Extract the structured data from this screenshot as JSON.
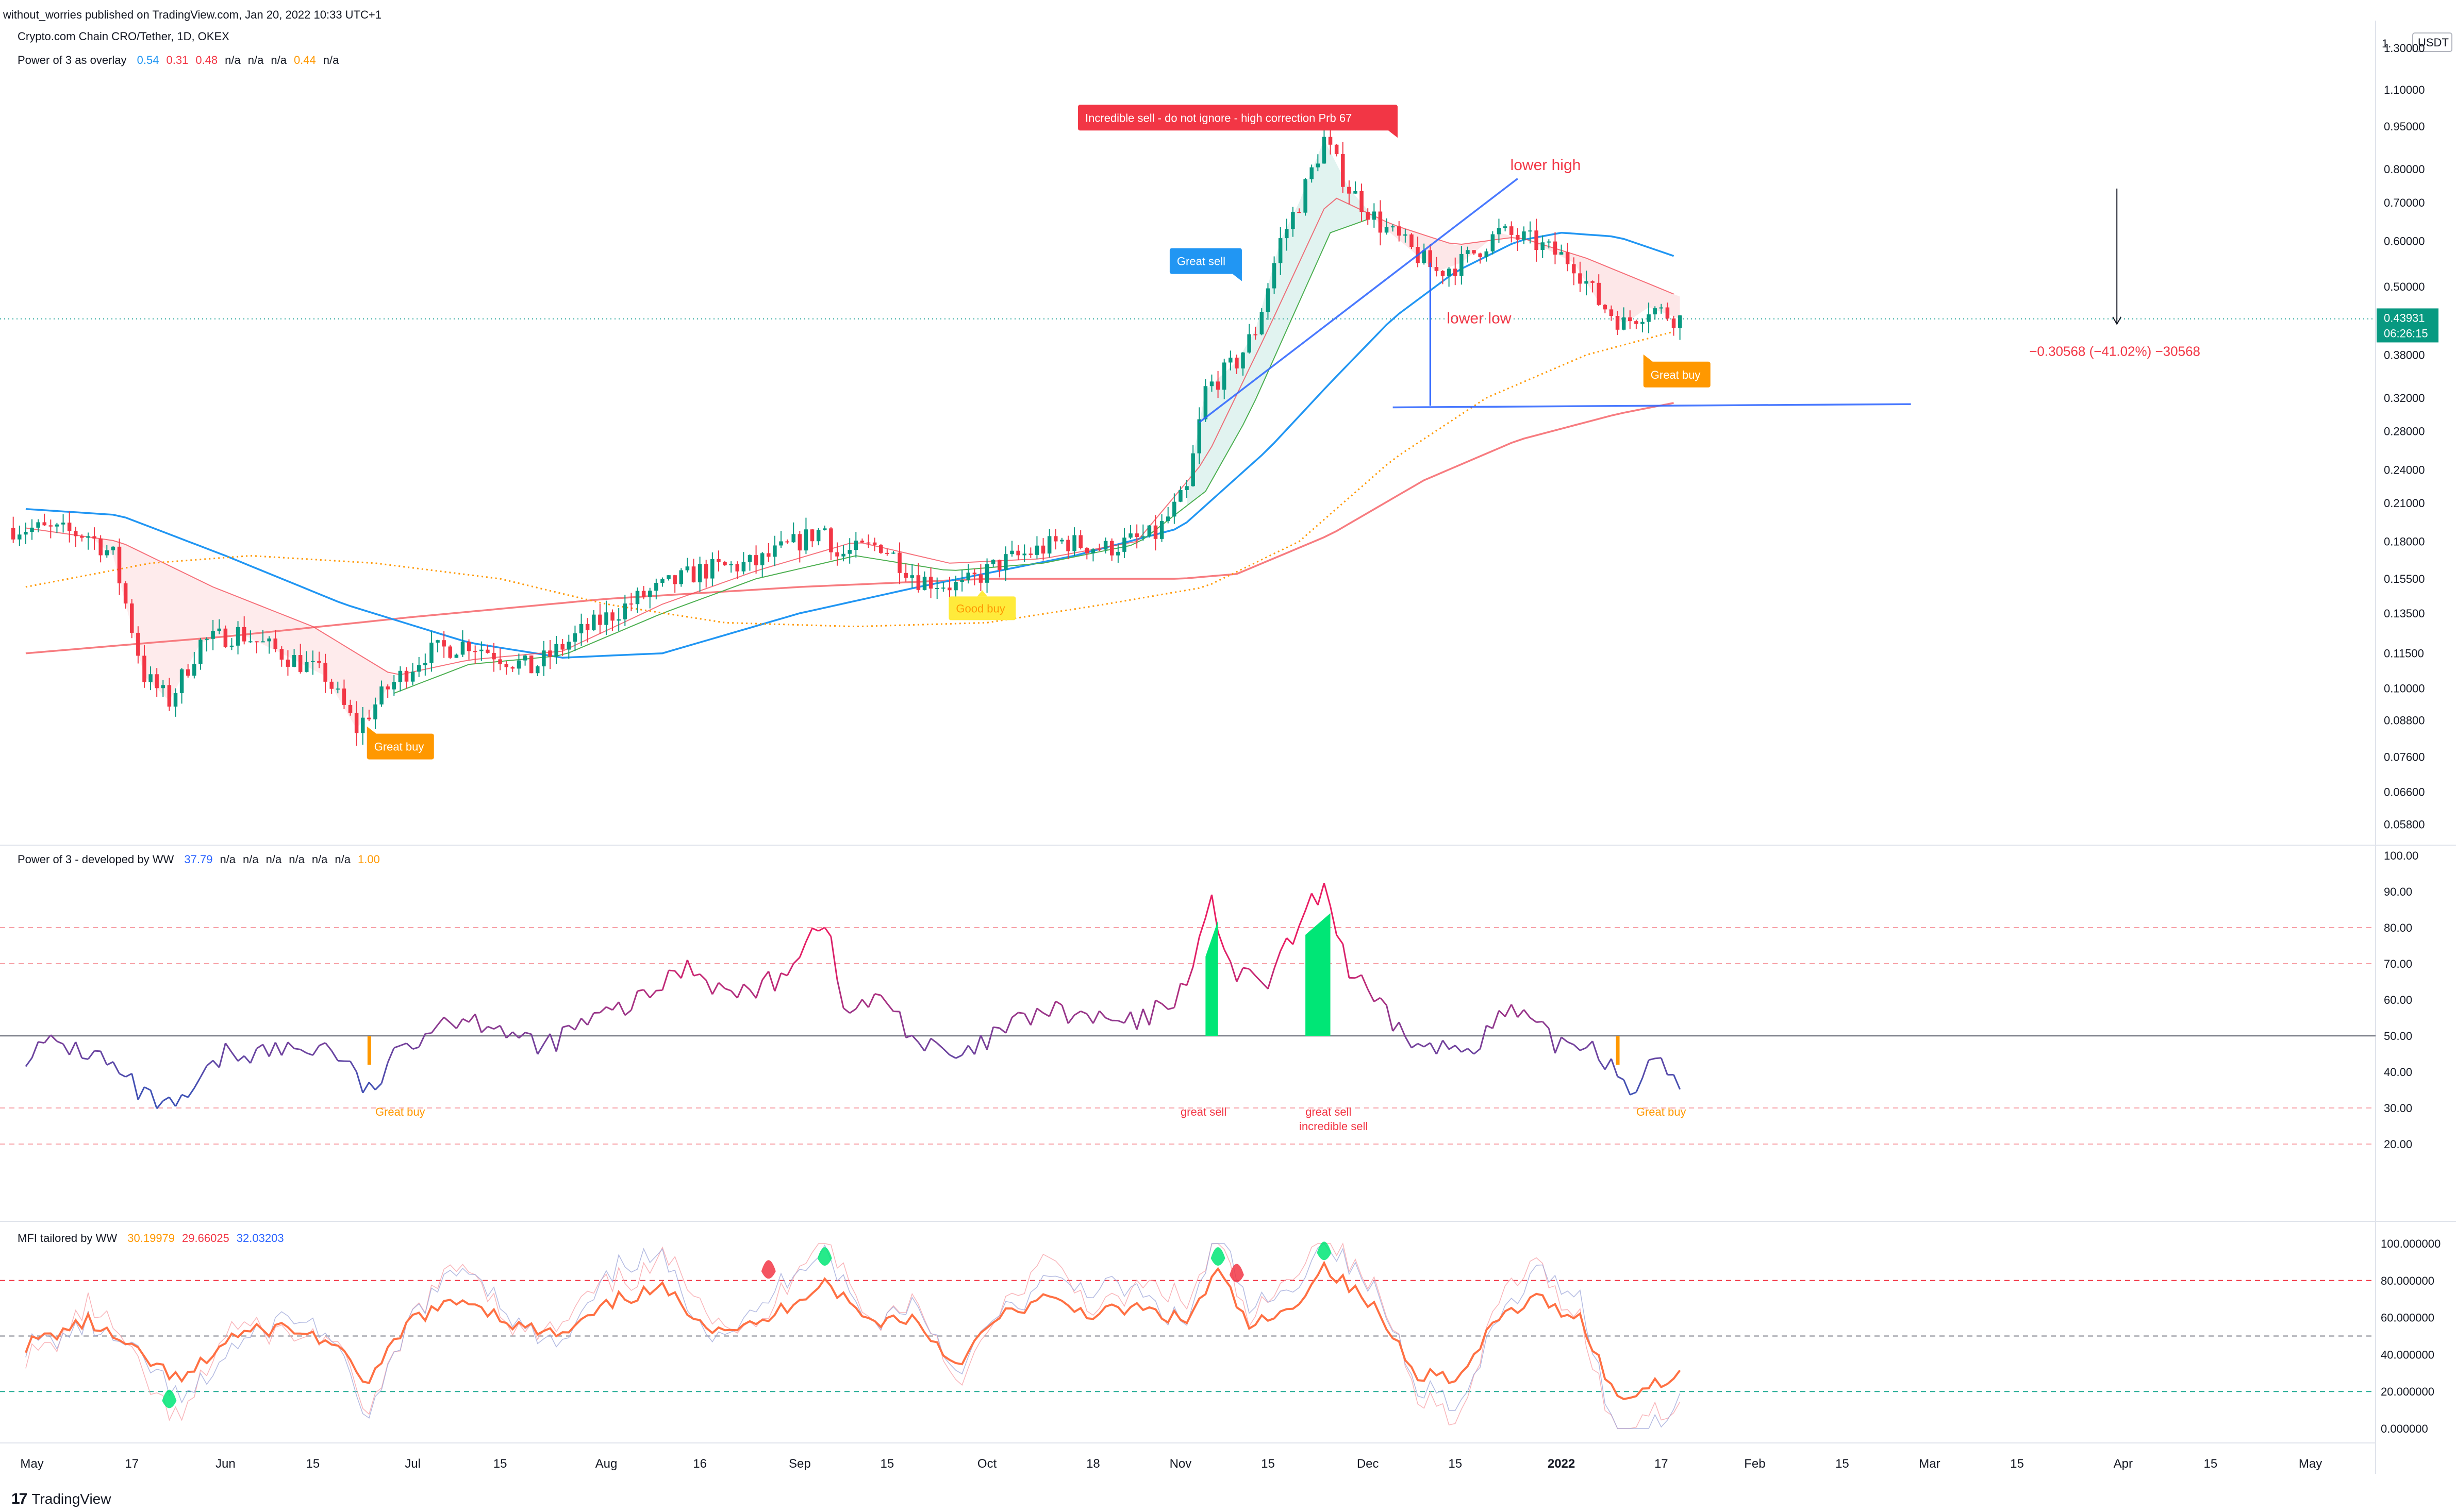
{
  "header": {
    "publisher": "without_worries published on TradingView.com, Jan 20, 2022 10:33 UTC+1",
    "symbol": "Crypto.com Chain CRO/Tether, 1D, OKEX",
    "overlay_name": "Power of 3 as overlay",
    "overlay_values": [
      "0.54",
      "0.31",
      "0.48",
      "n/a",
      "n/a",
      "n/a",
      "0.44",
      "n/a"
    ],
    "overlay_colors": [
      "#2196f3",
      "#f23645",
      "#f23645",
      "#131722",
      "#131722",
      "#131722",
      "#ff9800",
      "#131722"
    ]
  },
  "brand": {
    "logo": "17",
    "name": "TradingView"
  },
  "price_axis": {
    "currency": "USDT",
    "labels": [
      "1.",
      "1.30000",
      "1.10000",
      "0.95000",
      "0.80000",
      "0.70000",
      "0.60000",
      "0.50000",
      "0.43931",
      "06:26:15",
      "0.38000",
      "0.32000",
      "0.28000",
      "0.24000",
      "0.21000",
      "0.18000",
      "0.15500",
      "0.13500",
      "0.11500",
      "0.10000",
      "0.08800",
      "0.07600",
      "0.06600",
      "0.05800"
    ],
    "ticks": [
      1.3,
      1.1,
      0.95,
      0.8,
      0.7,
      0.6,
      0.5,
      0.38,
      0.32,
      0.28,
      0.24,
      0.21,
      0.18,
      0.155,
      0.135,
      0.115,
      0.1,
      0.088,
      0.076,
      0.066,
      0.058
    ],
    "current_price": 0.43931,
    "countdown": "06:26:15",
    "scale": "log"
  },
  "time_axis": {
    "labels": [
      "May",
      "17",
      "Jun",
      "15",
      "Jul",
      "15",
      "Aug",
      "16",
      "Sep",
      "15",
      "Oct",
      "18",
      "Nov",
      "15",
      "Dec",
      "15",
      "2022",
      "17",
      "Feb",
      "15",
      "Mar",
      "15",
      "Apr",
      "15",
      "May"
    ]
  },
  "annotations": {
    "incredible_sell": "Incredible sell - do not ignore - high correction Prb   67",
    "great_sell": "Great sell",
    "great_buy_1": "Great buy",
    "great_buy_2": "Great buy",
    "good_buy": "Good buy",
    "lower_high": "lower high",
    "lower_low": "lower low",
    "measure": "−0.30568 (−41.02%) −30568"
  },
  "panel2": {
    "name": "Power of 3 - developed by WW",
    "values": [
      "37.79",
      "n/a",
      "n/a",
      "n/a",
      "n/a",
      "n/a",
      "n/a",
      "1.00"
    ],
    "colors": [
      "#2962ff",
      "#131722",
      "#131722",
      "#131722",
      "#131722",
      "#131722",
      "#131722",
      "#ff9800"
    ],
    "axis": [
      "100.00",
      "90.00",
      "80.00",
      "70.00",
      "60.00",
      "50.00",
      "40.00",
      "30.00",
      "20.00"
    ],
    "labels": {
      "great_buy_1": "Great buy",
      "great_sell": "great sell",
      "great_sell_2": "great sell",
      "incredible_sell": "incredible sell",
      "great_buy_2": "Great buy"
    }
  },
  "panel3": {
    "name": "MFI tailored by WW",
    "values": [
      "30.19979",
      "29.66025",
      "32.03203"
    ],
    "colors": [
      "#ff9800",
      "#f23645",
      "#2962ff"
    ],
    "axis": [
      "100.000000",
      "80.000000",
      "60.000000",
      "40.000000",
      "20.000000",
      "0.000000"
    ]
  },
  "colors": {
    "up": "#089981",
    "down": "#f23645",
    "sma_blue": "#2196f3",
    "sma_red": "#f77c80",
    "ema_red": "#f23645",
    "dotted_orange": "#ff9800",
    "rsi_red": "#f23645",
    "rsi_blue": "#2962ff",
    "label_red": "#f23645",
    "label_blue": "#2196f3",
    "label_orange": "#ff9800",
    "label_yellow": "#ffeb3b"
  },
  "chart_data": {
    "type": "candlestick",
    "title": "Crypto.com Chain CRO/Tether, 1D, OKEX",
    "x_range": [
      "2021-05-01",
      "2022-05-05"
    ],
    "y_scale": "log",
    "ylim": [
      0.055,
      1.45
    ],
    "anchors": [
      [
        "2021-04-30",
        0.19
      ],
      [
        "2021-05-10",
        0.185
      ],
      [
        "2021-05-14",
        0.17
      ],
      [
        "2021-05-19",
        0.105
      ],
      [
        "2021-05-23",
        0.095
      ],
      [
        "2021-05-28",
        0.12
      ],
      [
        "2021-06-03",
        0.125
      ],
      [
        "2021-06-10",
        0.115
      ],
      [
        "2021-06-17",
        0.105
      ],
      [
        "2021-06-22",
        0.085
      ],
      [
        "2021-06-27",
        0.1
      ],
      [
        "2021-07-03",
        0.115
      ],
      [
        "2021-07-10",
        0.12
      ],
      [
        "2021-07-20",
        0.108
      ],
      [
        "2021-07-28",
        0.125
      ],
      [
        "2021-08-07",
        0.145
      ],
      [
        "2021-08-16",
        0.16
      ],
      [
        "2021-08-25",
        0.165
      ],
      [
        "2021-09-05",
        0.19
      ],
      [
        "2021-09-07",
        0.17
      ],
      [
        "2021-09-14",
        0.178
      ],
      [
        "2021-09-20",
        0.155
      ],
      [
        "2021-09-27",
        0.15
      ],
      [
        "2021-10-03",
        0.165
      ],
      [
        "2021-10-13",
        0.18
      ],
      [
        "2021-10-20",
        0.175
      ],
      [
        "2021-10-28",
        0.185
      ],
      [
        "2021-11-02",
        0.22
      ],
      [
        "2021-11-05",
        0.33
      ],
      [
        "2021-11-10",
        0.37
      ],
      [
        "2021-11-13",
        0.42
      ],
      [
        "2021-11-17",
        0.6
      ],
      [
        "2021-11-20",
        0.7
      ],
      [
        "2021-11-24",
        0.9
      ],
      [
        "2021-11-28",
        0.74
      ],
      [
        "2021-12-03",
        0.64
      ],
      [
        "2021-12-07",
        0.59
      ],
      [
        "2021-12-12",
        0.53
      ],
      [
        "2021-12-16",
        0.55
      ],
      [
        "2021-12-22",
        0.62
      ],
      [
        "2021-12-27",
        0.6
      ],
      [
        "2022-01-03",
        0.55
      ],
      [
        "2022-01-07",
        0.47
      ],
      [
        "2022-01-11",
        0.43
      ],
      [
        "2022-01-15",
        0.46
      ],
      [
        "2022-01-20",
        0.439
      ]
    ],
    "moving_averages": {
      "sma_blue": [
        [
          "2021-04-30",
          0.205
        ],
        [
          "2021-05-15",
          0.2
        ],
        [
          "2021-06-01",
          0.17
        ],
        [
          "2021-06-20",
          0.14
        ],
        [
          "2021-07-10",
          0.12
        ],
        [
          "2021-07-25",
          0.113
        ],
        [
          "2021-08-10",
          0.115
        ],
        [
          "2021-09-01",
          0.135
        ],
        [
          "2021-09-20",
          0.15
        ],
        [
          "2021-10-15",
          0.17
        ],
        [
          "2021-11-01",
          0.19
        ],
        [
          "2021-11-15",
          0.26
        ],
        [
          "2021-11-25",
          0.34
        ],
        [
          "2021-12-05",
          0.44
        ],
        [
          "2021-12-15",
          0.53
        ],
        [
          "2021-12-25",
          0.6
        ],
        [
          "2022-01-01",
          0.62
        ],
        [
          "2022-01-10",
          0.61
        ],
        [
          "2022-01-20",
          0.56
        ]
      ],
      "ema_red": [
        [
          "2021-04-30",
          0.19
        ],
        [
          "2021-05-15",
          0.18
        ],
        [
          "2021-05-30",
          0.15
        ],
        [
          "2021-06-15",
          0.128
        ],
        [
          "2021-06-28",
          0.105
        ],
        [
          "2021-07-10",
          0.112
        ],
        [
          "2021-07-25",
          0.116
        ],
        [
          "2021-08-10",
          0.14
        ],
        [
          "2021-08-25",
          0.16
        ],
        [
          "2021-09-10",
          0.18
        ],
        [
          "2021-09-25",
          0.165
        ],
        [
          "2021-10-10",
          0.168
        ],
        [
          "2021-10-25",
          0.18
        ],
        [
          "2021-11-05",
          0.25
        ],
        [
          "2021-11-15",
          0.42
        ],
        [
          "2021-11-25",
          0.72
        ],
        [
          "2021-12-05",
          0.64
        ],
        [
          "2021-12-15",
          0.59
        ],
        [
          "2021-12-25",
          0.61
        ],
        [
          "2022-01-05",
          0.56
        ],
        [
          "2022-01-20",
          0.48
        ]
      ],
      "green": [
        [
          "2021-06-28",
          0.098
        ],
        [
          "2021-07-10",
          0.11
        ],
        [
          "2021-07-25",
          0.114
        ],
        [
          "2021-08-10",
          0.135
        ],
        [
          "2021-08-25",
          0.155
        ],
        [
          "2021-09-10",
          0.17
        ],
        [
          "2021-09-25",
          0.16
        ],
        [
          "2021-10-10",
          0.165
        ],
        [
          "2021-10-25",
          0.178
        ],
        [
          "2021-11-05",
          0.22
        ],
        [
          "2021-11-12",
          0.3
        ],
        [
          "2021-11-18",
          0.42
        ],
        [
          "2021-11-25",
          0.62
        ],
        [
          "2021-12-02",
          0.66
        ]
      ],
      "sma200_red": [
        [
          "2021-04-30",
          0.115
        ],
        [
          "2021-06-01",
          0.123
        ],
        [
          "2021-07-01",
          0.133
        ],
        [
          "2021-08-01",
          0.143
        ],
        [
          "2021-09-01",
          0.15
        ],
        [
          "2021-10-01",
          0.155
        ],
        [
          "2021-11-01",
          0.155
        ],
        [
          "2021-11-10",
          0.158
        ],
        [
          "2021-11-25",
          0.185
        ],
        [
          "2021-12-10",
          0.23
        ],
        [
          "2021-12-25",
          0.27
        ],
        [
          "2022-01-10",
          0.3
        ],
        [
          "2022-01-20",
          0.315
        ]
      ],
      "dotted_orange": [
        [
          "2021-04-30",
          0.15
        ],
        [
          "2021-05-20",
          0.165
        ],
        [
          "2021-06-05",
          0.17
        ],
        [
          "2021-06-25",
          0.165
        ],
        [
          "2021-07-15",
          0.155
        ],
        [
          "2021-08-01",
          0.14
        ],
        [
          "2021-08-20",
          0.13
        ],
        [
          "2021-09-10",
          0.128
        ],
        [
          "2021-10-01",
          0.13
        ],
        [
          "2021-10-20",
          0.14
        ],
        [
          "2021-11-05",
          0.15
        ],
        [
          "2021-11-20",
          0.18
        ],
        [
          "2021-12-05",
          0.25
        ],
        [
          "2021-12-20",
          0.32
        ],
        [
          "2022-01-05",
          0.38
        ],
        [
          "2022-01-20",
          0.42
        ]
      ]
    },
    "panel2_series": [
      [
        "2021-04-30",
        45
      ],
      [
        "2021-05-05",
        48
      ],
      [
        "2021-05-12",
        44
      ],
      [
        "2021-05-19",
        33
      ],
      [
        "2021-05-24",
        29
      ],
      [
        "2021-06-01",
        45
      ],
      [
        "2021-06-10",
        46
      ],
      [
        "2021-06-18",
        47
      ],
      [
        "2021-06-24",
        34
      ],
      [
        "2021-06-30",
        48
      ],
      [
        "2021-07-06",
        55
      ],
      [
        "2021-07-14",
        54
      ],
      [
        "2021-07-21",
        46
      ],
      [
        "2021-07-28",
        53
      ],
      [
        "2021-08-07",
        60
      ],
      [
        "2021-08-14",
        70
      ],
      [
        "2021-08-21",
        61
      ],
      [
        "2021-08-28",
        65
      ],
      [
        "2021-09-05",
        83
      ],
      [
        "2021-09-08",
        57
      ],
      [
        "2021-09-15",
        60
      ],
      [
        "2021-09-20",
        48
      ],
      [
        "2021-09-27",
        43
      ],
      [
        "2021-10-03",
        51
      ],
      [
        "2021-10-10",
        57
      ],
      [
        "2021-10-17",
        55
      ],
      [
        "2021-10-25",
        53
      ],
      [
        "2021-11-01",
        62
      ],
      [
        "2021-11-06",
        86
      ],
      [
        "2021-11-10",
        66
      ],
      [
        "2021-11-15",
        65
      ],
      [
        "2021-11-20",
        80
      ],
      [
        "2021-11-24",
        92
      ],
      [
        "2021-11-28",
        68
      ],
      [
        "2021-12-04",
        55
      ],
      [
        "2021-12-10",
        46
      ],
      [
        "2021-12-17",
        47
      ],
      [
        "2021-12-24",
        57
      ],
      [
        "2021-12-31",
        48
      ],
      [
        "2022-01-06",
        48
      ],
      [
        "2022-01-12",
        36
      ],
      [
        "2022-01-16",
        42
      ],
      [
        "2022-01-20",
        38
      ]
    ],
    "panel3_series": [
      [
        "2021-04-30",
        45
      ],
      [
        "2021-05-10",
        58
      ],
      [
        "2021-05-18",
        40
      ],
      [
        "2021-05-25",
        25
      ],
      [
        "2021-06-02",
        50
      ],
      [
        "2021-06-10",
        55
      ],
      [
        "2021-06-17",
        48
      ],
      [
        "2021-06-24",
        25
      ],
      [
        "2021-07-01",
        60
      ],
      [
        "2021-07-10",
        70
      ],
      [
        "2021-07-18",
        55
      ],
      [
        "2021-07-25",
        50
      ],
      [
        "2021-08-03",
        70
      ],
      [
        "2021-08-10",
        75
      ],
      [
        "2021-08-18",
        55
      ],
      [
        "2021-08-25",
        55
      ],
      [
        "2021-09-05",
        80
      ],
      [
        "2021-09-12",
        58
      ],
      [
        "2021-09-19",
        60
      ],
      [
        "2021-09-26",
        35
      ],
      [
        "2021-10-03",
        60
      ],
      [
        "2021-10-10",
        70
      ],
      [
        "2021-10-18",
        62
      ],
      [
        "2021-10-25",
        65
      ],
      [
        "2021-11-02",
        58
      ],
      [
        "2021-11-07",
        85
      ],
      [
        "2021-11-12",
        55
      ],
      [
        "2021-11-18",
        62
      ],
      [
        "2021-11-24",
        88
      ],
      [
        "2021-12-02",
        65
      ],
      [
        "2021-12-09",
        30
      ],
      [
        "2021-12-16",
        28
      ],
      [
        "2021-12-22",
        60
      ],
      [
        "2021-12-28",
        70
      ],
      [
        "2022-01-04",
        60
      ],
      [
        "2022-01-10",
        15
      ],
      [
        "2022-01-16",
        25
      ],
      [
        "2022-01-20",
        30
      ]
    ]
  }
}
